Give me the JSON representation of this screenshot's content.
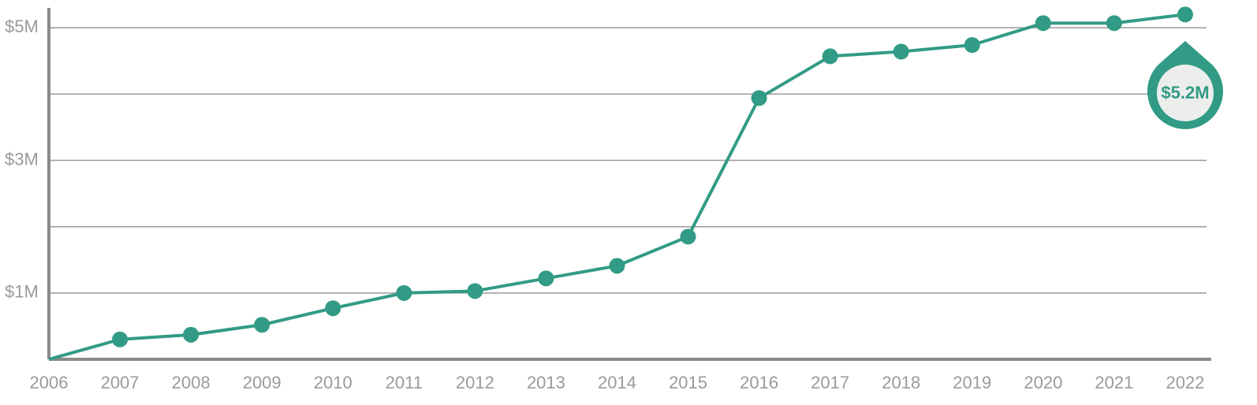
{
  "chart_data": {
    "type": "line",
    "categories": [
      "2006",
      "2007",
      "2008",
      "2009",
      "2010",
      "2011",
      "2012",
      "2013",
      "2014",
      "2015",
      "2016",
      "2017",
      "2018",
      "2019",
      "2020",
      "2021",
      "2022"
    ],
    "values": [
      0,
      0.3,
      0.37,
      0.52,
      0.77,
      1.0,
      1.03,
      1.22,
      1.41,
      1.85,
      3.94,
      4.57,
      4.64,
      4.74,
      5.07,
      5.07,
      5.2
    ],
    "value_labels": [
      null,
      null,
      null,
      null,
      null,
      null,
      null,
      null,
      null,
      null,
      null,
      null,
      null,
      null,
      null,
      null,
      "$5.2M"
    ],
    "color": "#329b85",
    "ylim": [
      0,
      5.3
    ],
    "yticks": [
      {
        "value": 1,
        "label": "$1M"
      },
      {
        "value": 3,
        "label": "$3M"
      },
      {
        "value": 5,
        "label": "$5M"
      }
    ],
    "grid_lines": [
      1,
      2,
      3,
      4,
      5
    ],
    "grid": true
  }
}
